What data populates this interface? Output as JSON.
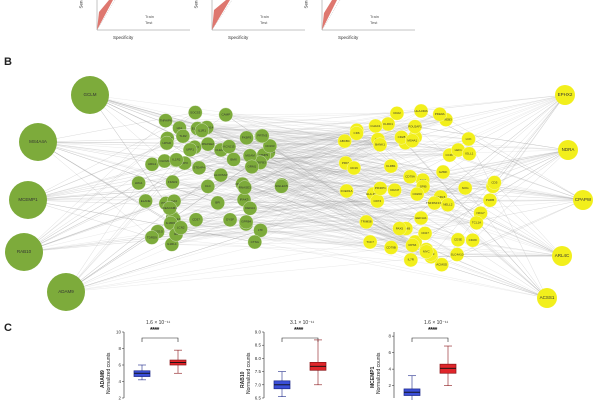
{
  "panels": {
    "b": "B",
    "c": "C"
  },
  "roc": {
    "ylabel": "Sen",
    "xlabel": "Specificity",
    "legend": [
      "Train",
      "Test"
    ],
    "ticks": [
      "0.00",
      "0.25",
      "0.50",
      "0.75",
      "1.00"
    ],
    "color": "#d6554b"
  },
  "network": {
    "left_hubs": [
      "GCLM",
      "MS4A4A",
      "MCEMP1",
      "RAB10",
      "ADAM9"
    ],
    "right_hubs": [
      "EPHX2",
      "NDRA",
      "CPAPW",
      "ARL4C",
      "ACSS1"
    ],
    "green_color": "#7dab3b",
    "yellow_color": "#f2ef1c",
    "green_labels": [
      "ALPK5",
      "CD37",
      "ELOVL6",
      "IL1RL1",
      "SLC2A14",
      "HAL",
      "CLEC4E",
      "MYO1G",
      "STEAP4",
      "TLR2",
      "FCGR1A",
      "ANXA3",
      "MMP9",
      "NAMPT",
      "CD163",
      "SLC26A8",
      "KCNJ15",
      "DYSF",
      "ITGAM",
      "PFKFB3",
      "SOCS3",
      "IRAK3",
      "ARG1",
      "CA4",
      "ALOX5AP",
      "S100A12",
      "TNFAIP6",
      "FFAR2",
      "CEACAM1",
      "IL18R1",
      "GK",
      "CD177",
      "MGAM",
      "FKBP5",
      "HPGD",
      "LRG1",
      "ORM1",
      "RETN",
      "OLFM4",
      "LCN2",
      "CAMP",
      "LTF",
      "DEFA4",
      "BPI",
      "CEACAM8",
      "MPO",
      "ELANE",
      "CTSG",
      "AZU1",
      "PRTN3",
      "RNASE2",
      "RNASE3",
      "CLC",
      "IL1R2",
      "IL1R1",
      "UPP1",
      "BMX",
      "TDRD9",
      "GPR84",
      "SIGLEC5"
    ],
    "yellow_labels": [
      "ASNS",
      "PHRB",
      "ACMSD",
      "PRF1",
      "GZMB",
      "GNLY",
      "NKG7",
      "KLRD1",
      "CD247",
      "CD3D",
      "CD3E",
      "CD2",
      "LCK",
      "ZAP70",
      "ITK",
      "IL7R",
      "CCR7",
      "SELL",
      "LEF1",
      "TCF7",
      "MAL",
      "CD28",
      "CD27",
      "CD5",
      "CD6",
      "GZMK",
      "KLRB1",
      "FCER1A",
      "HLA-DRA",
      "HLA-DQA1",
      "CD74",
      "BLK",
      "CD19",
      "MS4A1",
      "CD79A",
      "CD79B",
      "FCRLA",
      "PAX5",
      "BANK1",
      "TCL1A",
      "VPREB3",
      "IGLL1",
      "SPIB",
      "POU2AF1",
      "CD22",
      "FCRL5",
      "TNFRSF13B",
      "CD200",
      "ABCB4",
      "EEF1A1",
      "RPL3",
      "RPS6",
      "NOG",
      "CHAC1",
      "TRIM58",
      "NELL2",
      "PDE9A",
      "SLC4A10",
      "PIK3IP1",
      "MYC"
    ]
  },
  "boxplots": [
    {
      "gene": "ADAM9",
      "ylabel": "Normalized counts",
      "pvalue": "1.6 × 10⁻¹¹",
      "stars": "****",
      "yticks": [
        "10",
        "8",
        "6",
        "4",
        "2"
      ],
      "blue": {
        "q1": 4.6,
        "median": 5.0,
        "q3": 5.3,
        "min": 4.2,
        "max": 6.0
      },
      "red": {
        "q1": 6.0,
        "median": 6.3,
        "q3": 6.6,
        "min": 5.0,
        "max": 7.8
      },
      "ylim": [
        2,
        10
      ]
    },
    {
      "gene": "RAB10",
      "ylabel": "Normalized counts",
      "pvalue": "3.1 × 10⁻¹¹",
      "stars": "****",
      "yticks": [
        "9.0",
        "8.5",
        "8.0",
        "7.5",
        "7.0",
        "6.5"
      ],
      "blue": {
        "q1": 6.85,
        "median": 7.0,
        "q3": 7.15,
        "min": 6.55,
        "max": 7.5
      },
      "red": {
        "q1": 7.55,
        "median": 7.7,
        "q3": 7.85,
        "min": 7.0,
        "max": 8.7
      },
      "ylim": [
        6.5,
        9.0
      ]
    },
    {
      "gene": "MCEMP1",
      "ylabel": "Normalized counts",
      "pvalue": "1.6 × 10⁻¹¹",
      "stars": "****",
      "yticks": [
        "8",
        "6",
        "4",
        "2"
      ],
      "blue": {
        "q1": 0.8,
        "median": 1.2,
        "q3": 1.6,
        "min": 0.2,
        "max": 3.2
      },
      "red": {
        "q1": 3.5,
        "median": 4.1,
        "q3": 4.6,
        "min": 2.0,
        "max": 6.8
      },
      "ylim": [
        0.5,
        8.5
      ]
    }
  ]
}
